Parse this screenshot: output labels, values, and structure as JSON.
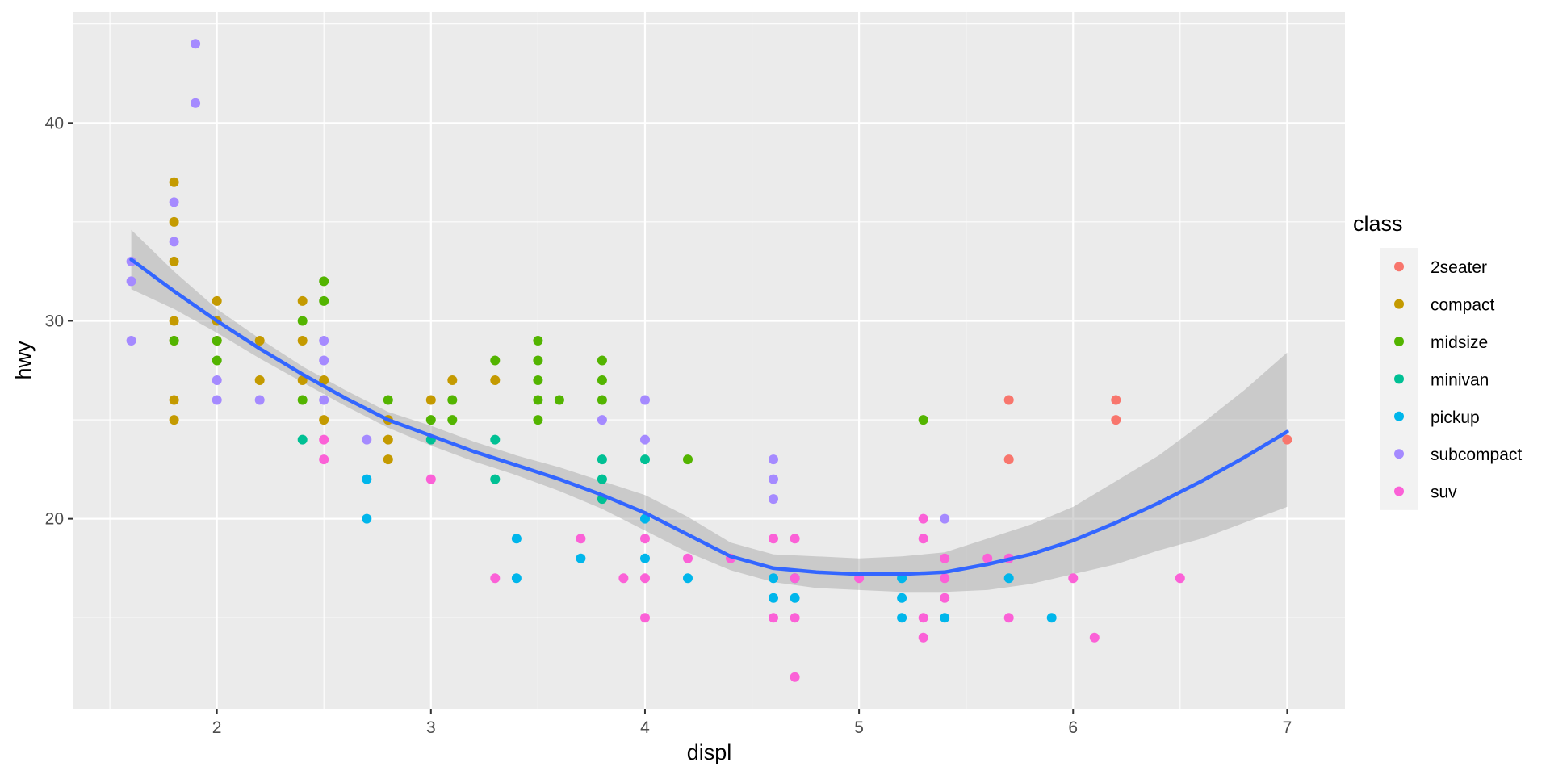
{
  "chart_data": {
    "type": "scatter",
    "xlabel": "displ",
    "ylabel": "hwy",
    "xlim": [
      1.33,
      7.27
    ],
    "ylim": [
      10.4,
      45.6
    ],
    "xticks": [
      2,
      3,
      4,
      5,
      6,
      7
    ],
    "yticks": [
      20,
      30,
      40
    ],
    "grid": true,
    "legend": {
      "title": "class",
      "position": "right",
      "entries": [
        "2seater",
        "compact",
        "midsize",
        "minivan",
        "pickup",
        "subcompact",
        "suv"
      ]
    },
    "colors": {
      "2seater": "#F8766D",
      "compact": "#C49A00",
      "midsize": "#53B400",
      "minivan": "#00C094",
      "pickup": "#00B6EB",
      "subcompact": "#A58AFF",
      "suv": "#FB61D7",
      "smooth": "#3366FF",
      "ribbon": "#C3C3C3",
      "panel": "#EBEBEB"
    },
    "series": [
      {
        "name": "2seater",
        "points": [
          [
            5.7,
            26
          ],
          [
            5.7,
            23
          ],
          [
            6.2,
            26
          ],
          [
            6.2,
            25
          ],
          [
            7.0,
            24
          ]
        ]
      },
      {
        "name": "compact",
        "points": [
          [
            1.8,
            37
          ],
          [
            1.8,
            35
          ],
          [
            1.8,
            33
          ],
          [
            1.8,
            30
          ],
          [
            1.8,
            29
          ],
          [
            1.8,
            26
          ],
          [
            1.8,
            25
          ],
          [
            2.0,
            31
          ],
          [
            2.0,
            30
          ],
          [
            2.0,
            29
          ],
          [
            2.2,
            29
          ],
          [
            2.2,
            27
          ],
          [
            2.4,
            31
          ],
          [
            2.4,
            29
          ],
          [
            2.4,
            27
          ],
          [
            2.5,
            27
          ],
          [
            2.5,
            25
          ],
          [
            2.8,
            25
          ],
          [
            2.8,
            24
          ],
          [
            2.8,
            23
          ],
          [
            3.0,
            26
          ],
          [
            3.1,
            27
          ],
          [
            3.3,
            27
          ]
        ]
      },
      {
        "name": "midsize",
        "points": [
          [
            1.8,
            29
          ],
          [
            2.0,
            29
          ],
          [
            2.0,
            28
          ],
          [
            2.4,
            30
          ],
          [
            2.4,
            26
          ],
          [
            2.5,
            32
          ],
          [
            2.5,
            31
          ],
          [
            2.8,
            26
          ],
          [
            3.0,
            25
          ],
          [
            3.1,
            26
          ],
          [
            3.1,
            25
          ],
          [
            3.3,
            28
          ],
          [
            3.5,
            29
          ],
          [
            3.5,
            28
          ],
          [
            3.5,
            27
          ],
          [
            3.5,
            26
          ],
          [
            3.5,
            25
          ],
          [
            3.6,
            26
          ],
          [
            3.8,
            28
          ],
          [
            3.8,
            27
          ],
          [
            3.8,
            26
          ],
          [
            4.2,
            23
          ],
          [
            5.3,
            25
          ]
        ]
      },
      {
        "name": "minivan",
        "points": [
          [
            2.4,
            24
          ],
          [
            3.0,
            24
          ],
          [
            3.3,
            24
          ],
          [
            3.3,
            22
          ],
          [
            3.8,
            23
          ],
          [
            3.8,
            22
          ],
          [
            3.8,
            21
          ],
          [
            4.0,
            23
          ]
        ]
      },
      {
        "name": "pickup",
        "points": [
          [
            2.7,
            22
          ],
          [
            2.7,
            20
          ],
          [
            3.4,
            19
          ],
          [
            3.4,
            17
          ],
          [
            3.7,
            18
          ],
          [
            4.0,
            20
          ],
          [
            4.0,
            18
          ],
          [
            4.2,
            17
          ],
          [
            4.6,
            17
          ],
          [
            4.6,
            16
          ],
          [
            4.7,
            17
          ],
          [
            4.7,
            16
          ],
          [
            5.2,
            17
          ],
          [
            5.2,
            16
          ],
          [
            5.2,
            15
          ],
          [
            5.4,
            15
          ],
          [
            5.7,
            17
          ],
          [
            5.9,
            15
          ]
        ]
      },
      {
        "name": "subcompact",
        "points": [
          [
            1.6,
            33
          ],
          [
            1.6,
            32
          ],
          [
            1.6,
            29
          ],
          [
            1.8,
            36
          ],
          [
            1.8,
            34
          ],
          [
            1.9,
            44
          ],
          [
            1.9,
            41
          ],
          [
            2.0,
            27
          ],
          [
            2.0,
            26
          ],
          [
            2.2,
            26
          ],
          [
            2.5,
            29
          ],
          [
            2.5,
            28
          ],
          [
            2.5,
            26
          ],
          [
            2.7,
            24
          ],
          [
            3.8,
            25
          ],
          [
            4.0,
            26
          ],
          [
            4.0,
            24
          ],
          [
            4.6,
            23
          ],
          [
            4.6,
            22
          ],
          [
            4.6,
            21
          ],
          [
            5.4,
            20
          ]
        ]
      },
      {
        "name": "suv",
        "points": [
          [
            2.5,
            24
          ],
          [
            2.5,
            23
          ],
          [
            3.0,
            22
          ],
          [
            3.3,
            17
          ],
          [
            3.7,
            19
          ],
          [
            3.9,
            17
          ],
          [
            4.0,
            19
          ],
          [
            4.0,
            17
          ],
          [
            4.0,
            15
          ],
          [
            4.2,
            18
          ],
          [
            4.4,
            18
          ],
          [
            4.6,
            19
          ],
          [
            4.6,
            15
          ],
          [
            4.7,
            19
          ],
          [
            4.7,
            17
          ],
          [
            4.7,
            15
          ],
          [
            4.7,
            12
          ],
          [
            5.0,
            17
          ],
          [
            5.3,
            20
          ],
          [
            5.3,
            19
          ],
          [
            5.3,
            15
          ],
          [
            5.3,
            14
          ],
          [
            5.4,
            18
          ],
          [
            5.4,
            17
          ],
          [
            5.4,
            16
          ],
          [
            5.6,
            18
          ],
          [
            5.7,
            18
          ],
          [
            5.7,
            15
          ],
          [
            6.0,
            17
          ],
          [
            6.1,
            14
          ],
          [
            6.5,
            17
          ]
        ]
      }
    ],
    "smooth": {
      "method": "loess",
      "x": [
        1.6,
        1.8,
        2.0,
        2.2,
        2.4,
        2.6,
        2.8,
        3.0,
        3.2,
        3.4,
        3.6,
        3.8,
        4.0,
        4.2,
        4.4,
        4.6,
        4.8,
        5.0,
        5.2,
        5.4,
        5.6,
        5.8,
        6.0,
        6.2,
        6.4,
        6.6,
        6.8,
        7.0
      ],
      "y": [
        33.1,
        31.5,
        30.0,
        28.6,
        27.3,
        26.1,
        25.0,
        24.2,
        23.4,
        22.7,
        22.0,
        21.2,
        20.3,
        19.2,
        18.1,
        17.5,
        17.3,
        17.2,
        17.2,
        17.3,
        17.7,
        18.2,
        18.9,
        19.8,
        20.8,
        21.9,
        23.1,
        24.4
      ],
      "lower": [
        31.6,
        30.6,
        29.4,
        28.1,
        26.9,
        25.7,
        24.6,
        23.7,
        22.9,
        22.2,
        21.4,
        20.5,
        19.4,
        18.3,
        17.4,
        16.8,
        16.5,
        16.4,
        16.3,
        16.3,
        16.4,
        16.7,
        17.2,
        17.7,
        18.4,
        19.0,
        19.8,
        20.6
      ],
      "upper": [
        34.6,
        32.5,
        30.6,
        29.1,
        27.7,
        26.5,
        25.4,
        24.7,
        23.9,
        23.2,
        22.6,
        21.9,
        21.2,
        20.1,
        18.8,
        18.2,
        18.1,
        18.0,
        18.1,
        18.3,
        19.0,
        19.7,
        20.6,
        21.9,
        23.2,
        24.8,
        26.5,
        28.4
      ]
    }
  }
}
